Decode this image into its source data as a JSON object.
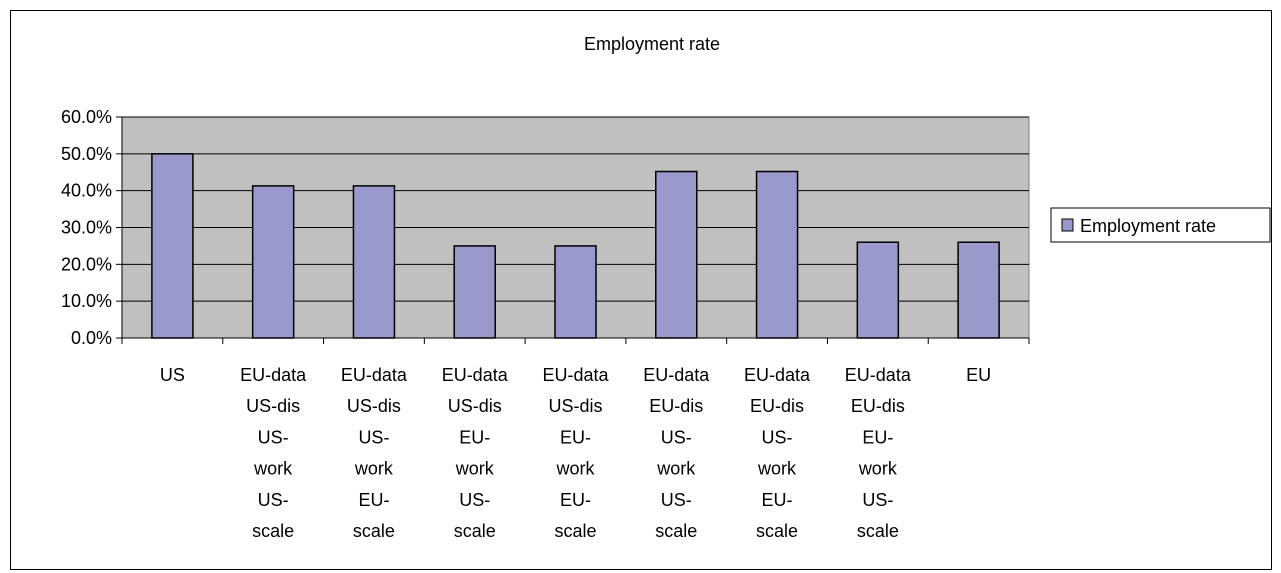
{
  "chart_data": {
    "type": "bar",
    "title": "Employment rate",
    "xlabel": "",
    "ylabel": "",
    "ylim": [
      0,
      0.6
    ],
    "yticks": [
      "0.0%",
      "10.0%",
      "20.0%",
      "30.0%",
      "40.0%",
      "50.0%",
      "60.0%"
    ],
    "grid": true,
    "legend_position": "right",
    "colors": {
      "bar_fill": "#9999cc",
      "plot_bg": "#c0c0c0"
    },
    "categories": [
      [
        "US"
      ],
      [
        "EU-data",
        "US-dis",
        "US-",
        "work",
        "US-",
        "scale"
      ],
      [
        "EU-data",
        "US-dis",
        "US-",
        "work",
        "EU-",
        "scale"
      ],
      [
        "EU-data",
        "US-dis",
        "EU-",
        "work",
        "US-",
        "scale"
      ],
      [
        "EU-data",
        "US-dis",
        "EU-",
        "work",
        "EU-",
        "scale"
      ],
      [
        "EU-data",
        "EU-dis",
        "US-",
        "work",
        "US-",
        "scale"
      ],
      [
        "EU-data",
        "EU-dis",
        "US-",
        "work",
        "EU-",
        "scale"
      ],
      [
        "EU-data",
        "EU-dis",
        "EU-",
        "work",
        "US-",
        "scale"
      ],
      [
        "EU"
      ]
    ],
    "series": [
      {
        "name": "Employment rate",
        "values": [
          0.5,
          0.413,
          0.413,
          0.25,
          0.25,
          0.452,
          0.452,
          0.26,
          0.26
        ]
      }
    ]
  }
}
